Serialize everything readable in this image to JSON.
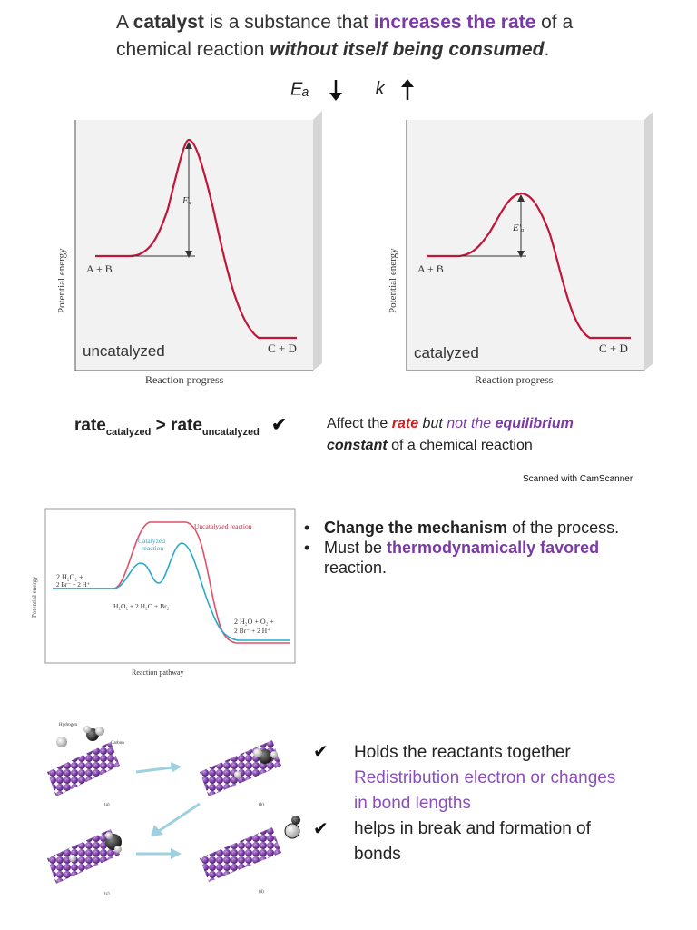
{
  "header": {
    "line1_pre": "A ",
    "line1_bold": "catalyst",
    "line1_mid": " is a substance that ",
    "line1_purple": "increases the rate",
    "line1_post": " of a",
    "line2_pre": "chemical reaction ",
    "line2_bi": "without itself being consumed",
    "line2_post": "."
  },
  "ek_symbols": {
    "ea": "Eₐ",
    "k": "k"
  },
  "chart_left": {
    "ylabel": "Potential energy",
    "xlabel": "Reaction progress",
    "reactant": "A + B",
    "product": "C + D",
    "ea_label": "Eₐ",
    "caption": "uncatalyzed"
  },
  "chart_right": {
    "ylabel": "Potential energy",
    "xlabel": "Reaction progress",
    "reactant": "A + B",
    "product": "C + D",
    "ea_label": "E′ₐ",
    "caption": "catalyzed"
  },
  "rate": {
    "word1": "rate",
    "sub1": "catalyzed",
    "gt": " > ",
    "word2": "rate",
    "sub2": "uncatalyzed",
    "check": "✔"
  },
  "affect": {
    "check": "✔",
    "pre": "Affect the ",
    "red": "rate",
    "mid": " but ",
    "purple": "not the ",
    "purple_bold": "equilibrium",
    "bi": "constant",
    "post": " of a chemical reaction"
  },
  "scanned": "Scanned with CamScanner",
  "pathway_chart": {
    "ylabel": "Potential energy",
    "xlabel": "Reaction pathway",
    "uncat_label": "Uncatalyzed reaction",
    "cat_label1": "Catalyzed",
    "cat_label2": "reaction",
    "reactant1": "2 H₂O₂ +",
    "reactant2": "2 Br⁻ + 2 H⁺",
    "intermediate": "H₂O₂ + 2 H₂O + Br₂",
    "product1": "2 H₂O + O₂ +",
    "product2": "2 Br⁻ + 2 H⁺"
  },
  "bullets": {
    "b1_bold": "Change the mechanism",
    "b1_post": " of the process.",
    "b2_pre": "Must be ",
    "b2_purple": "thermodynamically favored",
    "b2_line2": "reaction."
  },
  "surface": {
    "label_hydrogen": "Hydrogen",
    "label_carbon": "Carbon",
    "label_a": "(a)",
    "label_b": "(b)",
    "label_c": "(c)",
    "label_d": "(d)"
  },
  "holds": {
    "check1": "✔",
    "line1": "Holds the reactants together",
    "line2": "Redistribution electron or changes",
    "line3": "in bond lengths",
    "check2": "✔",
    "line4": "helps in break  and formation of",
    "line5": "bonds"
  },
  "colors": {
    "accent_purple": "#7b3aa8",
    "curve_red": "#c0163b",
    "curve_blue": "#2aa8c8",
    "surface_purple": "#7a3fa3"
  }
}
